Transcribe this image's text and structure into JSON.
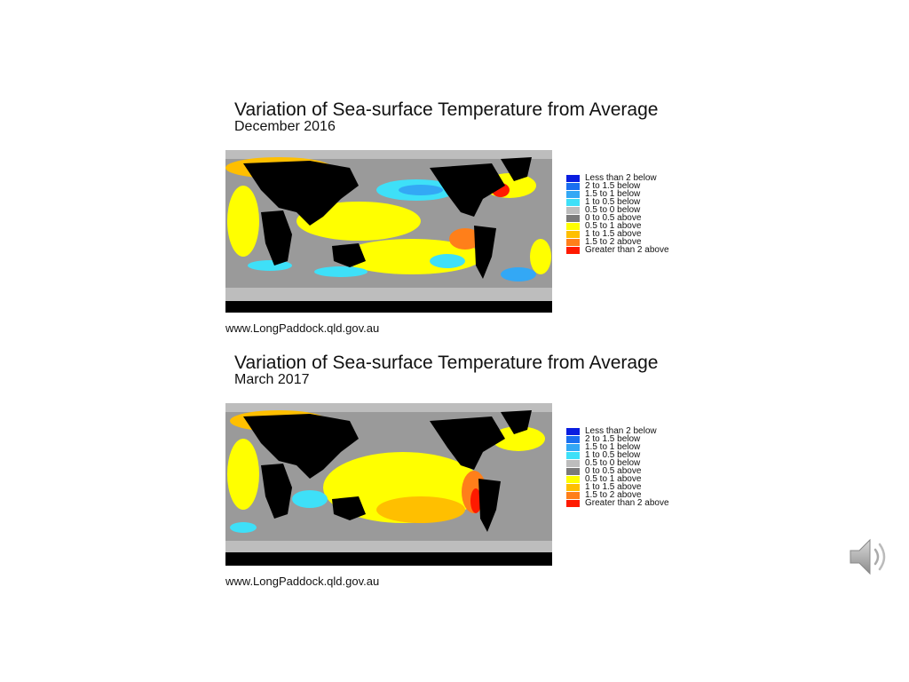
{
  "legend": [
    {
      "label": "Less than 2 below",
      "color": "#0a1de0"
    },
    {
      "label": "2 to 1.5 below",
      "color": "#1a6ff0"
    },
    {
      "label": "1.5 to 1 below",
      "color": "#33a8f5"
    },
    {
      "label": "1 to 0.5 below",
      "color": "#3ee0f8"
    },
    {
      "label": "0.5 to 0 below",
      "color": "#bdbdbd"
    },
    {
      "label": "0 to 0.5 above",
      "color": "#7a7a7a"
    },
    {
      "label": "0.5 to 1 above",
      "color": "#ffff00"
    },
    {
      "label": "1 to 1.5 above",
      "color": "#ffbf00"
    },
    {
      "label": "1.5 to 2 above",
      "color": "#ff7f1a"
    },
    {
      "label": "Greater than 2 above",
      "color": "#ff1a00"
    }
  ],
  "panels": [
    {
      "title": "Variation of Sea-surface Temperature from Average",
      "subtitle": "December 2016",
      "source": "www.LongPaddock.qld.gov.au"
    },
    {
      "title": "Variation of Sea-surface Temperature from Average",
      "subtitle": "March 2017",
      "source": "www.LongPaddock.qld.gov.au"
    }
  ],
  "speaker_icon": "speaker-icon"
}
